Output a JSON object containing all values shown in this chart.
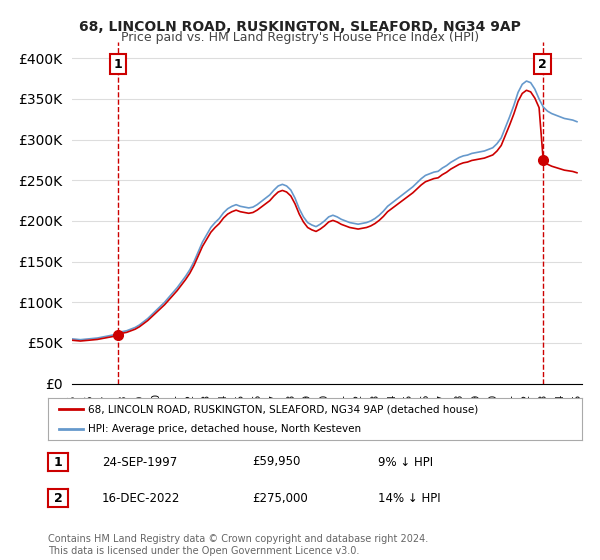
{
  "title1": "68, LINCOLN ROAD, RUSKINGTON, SLEAFORD, NG34 9AP",
  "title2": "Price paid vs. HM Land Registry's House Price Index (HPI)",
  "sale1_date": "24-SEP-1997",
  "sale1_price": 59950,
  "sale1_label": "9% ↓ HPI",
  "sale2_date": "16-DEC-2022",
  "sale2_price": 275000,
  "sale2_label": "14% ↓ HPI",
  "legend1": "68, LINCOLN ROAD, RUSKINGTON, SLEAFORD, NG34 9AP (detached house)",
  "legend2": "HPI: Average price, detached house, North Kesteven",
  "footer": "Contains HM Land Registry data © Crown copyright and database right 2024.\nThis data is licensed under the Open Government Licence v3.0.",
  "price_color": "#cc0000",
  "hpi_color": "#6699cc",
  "dashed_line_color": "#cc0000",
  "background_color": "#ffffff",
  "grid_color": "#dddddd",
  "ylim": [
    0,
    420000
  ],
  "yticks": [
    0,
    50000,
    100000,
    150000,
    200000,
    250000,
    300000,
    350000,
    400000
  ],
  "sale1_x": 1997.73,
  "sale2_x": 2022.96,
  "hpi_data": [
    [
      1995.0,
      55000
    ],
    [
      1995.25,
      54500
    ],
    [
      1995.5,
      54000
    ],
    [
      1995.75,
      54500
    ],
    [
      1996.0,
      55000
    ],
    [
      1996.25,
      55500
    ],
    [
      1996.5,
      56000
    ],
    [
      1996.75,
      57000
    ],
    [
      1997.0,
      58000
    ],
    [
      1997.25,
      59000
    ],
    [
      1997.5,
      60000
    ],
    [
      1997.75,
      62000
    ],
    [
      1998.0,
      64000
    ],
    [
      1998.25,
      65000
    ],
    [
      1998.5,
      67000
    ],
    [
      1998.75,
      69000
    ],
    [
      1999.0,
      72000
    ],
    [
      1999.25,
      76000
    ],
    [
      1999.5,
      80000
    ],
    [
      1999.75,
      85000
    ],
    [
      2000.0,
      90000
    ],
    [
      2000.25,
      95000
    ],
    [
      2000.5,
      100000
    ],
    [
      2000.75,
      106000
    ],
    [
      2001.0,
      112000
    ],
    [
      2001.25,
      118000
    ],
    [
      2001.5,
      125000
    ],
    [
      2001.75,
      132000
    ],
    [
      2002.0,
      140000
    ],
    [
      2002.25,
      150000
    ],
    [
      2002.5,
      162000
    ],
    [
      2002.75,
      174000
    ],
    [
      2003.0,
      183000
    ],
    [
      2003.25,
      192000
    ],
    [
      2003.5,
      198000
    ],
    [
      2003.75,
      203000
    ],
    [
      2004.0,
      210000
    ],
    [
      2004.25,
      215000
    ],
    [
      2004.5,
      218000
    ],
    [
      2004.75,
      220000
    ],
    [
      2005.0,
      218000
    ],
    [
      2005.25,
      217000
    ],
    [
      2005.5,
      216000
    ],
    [
      2005.75,
      217000
    ],
    [
      2006.0,
      220000
    ],
    [
      2006.25,
      224000
    ],
    [
      2006.5,
      228000
    ],
    [
      2006.75,
      232000
    ],
    [
      2007.0,
      238000
    ],
    [
      2007.25,
      243000
    ],
    [
      2007.5,
      245000
    ],
    [
      2007.75,
      243000
    ],
    [
      2008.0,
      238000
    ],
    [
      2008.25,
      228000
    ],
    [
      2008.5,
      215000
    ],
    [
      2008.75,
      205000
    ],
    [
      2009.0,
      198000
    ],
    [
      2009.25,
      195000
    ],
    [
      2009.5,
      193000
    ],
    [
      2009.75,
      196000
    ],
    [
      2010.0,
      200000
    ],
    [
      2010.25,
      205000
    ],
    [
      2010.5,
      207000
    ],
    [
      2010.75,
      205000
    ],
    [
      2011.0,
      202000
    ],
    [
      2011.25,
      200000
    ],
    [
      2011.5,
      198000
    ],
    [
      2011.75,
      197000
    ],
    [
      2012.0,
      196000
    ],
    [
      2012.25,
      197000
    ],
    [
      2012.5,
      198000
    ],
    [
      2012.75,
      200000
    ],
    [
      2013.0,
      203000
    ],
    [
      2013.25,
      207000
    ],
    [
      2013.5,
      212000
    ],
    [
      2013.75,
      218000
    ],
    [
      2014.0,
      222000
    ],
    [
      2014.25,
      226000
    ],
    [
      2014.5,
      230000
    ],
    [
      2014.75,
      234000
    ],
    [
      2015.0,
      238000
    ],
    [
      2015.25,
      242000
    ],
    [
      2015.5,
      247000
    ],
    [
      2015.75,
      252000
    ],
    [
      2016.0,
      256000
    ],
    [
      2016.25,
      258000
    ],
    [
      2016.5,
      260000
    ],
    [
      2016.75,
      261000
    ],
    [
      2017.0,
      265000
    ],
    [
      2017.25,
      268000
    ],
    [
      2017.5,
      272000
    ],
    [
      2017.75,
      275000
    ],
    [
      2018.0,
      278000
    ],
    [
      2018.25,
      280000
    ],
    [
      2018.5,
      281000
    ],
    [
      2018.75,
      283000
    ],
    [
      2019.0,
      284000
    ],
    [
      2019.25,
      285000
    ],
    [
      2019.5,
      286000
    ],
    [
      2019.75,
      288000
    ],
    [
      2020.0,
      290000
    ],
    [
      2020.25,
      295000
    ],
    [
      2020.5,
      302000
    ],
    [
      2020.75,
      315000
    ],
    [
      2021.0,
      328000
    ],
    [
      2021.25,
      342000
    ],
    [
      2021.5,
      358000
    ],
    [
      2021.75,
      368000
    ],
    [
      2022.0,
      372000
    ],
    [
      2022.25,
      370000
    ],
    [
      2022.5,
      362000
    ],
    [
      2022.75,
      350000
    ],
    [
      2023.0,
      340000
    ],
    [
      2023.25,
      335000
    ],
    [
      2023.5,
      332000
    ],
    [
      2023.75,
      330000
    ],
    [
      2024.0,
      328000
    ],
    [
      2024.25,
      326000
    ],
    [
      2024.5,
      325000
    ],
    [
      2024.75,
      324000
    ],
    [
      2025.0,
      322000
    ]
  ]
}
